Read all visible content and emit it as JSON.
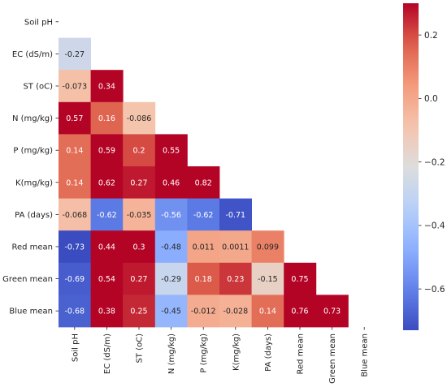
{
  "chart_data": {
    "type": "heatmap",
    "variables": [
      "Soil pH",
      "EC (dS/m)",
      "ST (oC)",
      "N (mg/kg)",
      "P (mg/kg)",
      "K(mg/kg)",
      "PA (days)",
      "Red mean",
      "Green mean",
      "Blue mean"
    ],
    "row_labels": [
      "Soil pH",
      "EC (dS/m)",
      "ST (oC)",
      "N (mg/kg)",
      "P (mg/kg)",
      "K(mg/kg)",
      "PA (days)",
      "Red mean",
      "Green mean",
      "Blue mean"
    ],
    "col_labels": [
      "Soil pH",
      "EC (dS/m)",
      "ST (oC)",
      "N (mg/kg)",
      "P (mg/kg)",
      "K(mg/kg)",
      "PA (days)",
      "Red mean",
      "Green mean",
      "Blue mean"
    ],
    "mask": "upper-triangle-including-diagonal",
    "values": [
      [
        null,
        null,
        null,
        null,
        null,
        null,
        null,
        null,
        null,
        null
      ],
      [
        -0.27,
        null,
        null,
        null,
        null,
        null,
        null,
        null,
        null,
        null
      ],
      [
        -0.073,
        0.34,
        null,
        null,
        null,
        null,
        null,
        null,
        null,
        null
      ],
      [
        0.57,
        0.16,
        -0.086,
        null,
        null,
        null,
        null,
        null,
        null,
        null
      ],
      [
        0.14,
        0.59,
        0.2,
        0.55,
        null,
        null,
        null,
        null,
        null,
        null
      ],
      [
        0.14,
        0.62,
        0.27,
        0.46,
        0.82,
        null,
        null,
        null,
        null,
        null
      ],
      [
        -0.068,
        -0.62,
        -0.035,
        -0.56,
        -0.62,
        -0.71,
        null,
        null,
        null,
        null
      ],
      [
        -0.73,
        0.44,
        0.3,
        -0.48,
        0.011,
        0.0011,
        0.099,
        null,
        null,
        null
      ],
      [
        -0.69,
        0.54,
        0.27,
        -0.29,
        0.18,
        0.23,
        -0.15,
        0.75,
        null,
        null
      ],
      [
        -0.68,
        0.38,
        0.25,
        -0.45,
        -0.012,
        -0.028,
        0.14,
        0.76,
        0.73,
        null
      ]
    ],
    "labels": [
      [
        null,
        null,
        null,
        null,
        null,
        null,
        null,
        null,
        null,
        null
      ],
      [
        "-0.27",
        null,
        null,
        null,
        null,
        null,
        null,
        null,
        null,
        null
      ],
      [
        "-0.073",
        "0.34",
        null,
        null,
        null,
        null,
        null,
        null,
        null,
        null
      ],
      [
        "0.57",
        "0.16",
        "-0.086",
        null,
        null,
        null,
        null,
        null,
        null,
        null
      ],
      [
        "0.14",
        "0.59",
        "0.2",
        "0.55",
        null,
        null,
        null,
        null,
        null,
        null
      ],
      [
        "0.14",
        "0.62",
        "0.27",
        "0.46",
        "0.82",
        null,
        null,
        null,
        null,
        null
      ],
      [
        "-0.068",
        "-0.62",
        "-0.035",
        "-0.56",
        "-0.62",
        "-0.71",
        null,
        null,
        null,
        null
      ],
      [
        "-0.73",
        "0.44",
        "0.3",
        "-0.48",
        "0.011",
        "0.0011",
        "0.099",
        null,
        null,
        null
      ],
      [
        "-0.69",
        "0.54",
        "0.27",
        "-0.29",
        "0.18",
        "0.23",
        "-0.15",
        "0.75",
        null,
        null
      ],
      [
        "-0.68",
        "0.38",
        "0.25",
        "-0.45",
        "-0.012",
        "-0.028",
        "0.14",
        "0.76",
        "0.73",
        null
      ]
    ],
    "colormap": "coolwarm",
    "vmin": -0.73,
    "vmax": 0.3,
    "colorbar": {
      "ticks": [
        0.2,
        0.0,
        -0.2,
        -0.4,
        -0.6
      ],
      "tick_labels": [
        "0.2",
        "0.0",
        "−0.2",
        "−0.4",
        "−0.6"
      ],
      "placement": "right"
    },
    "title": "",
    "xlabel": "",
    "ylabel": ""
  }
}
